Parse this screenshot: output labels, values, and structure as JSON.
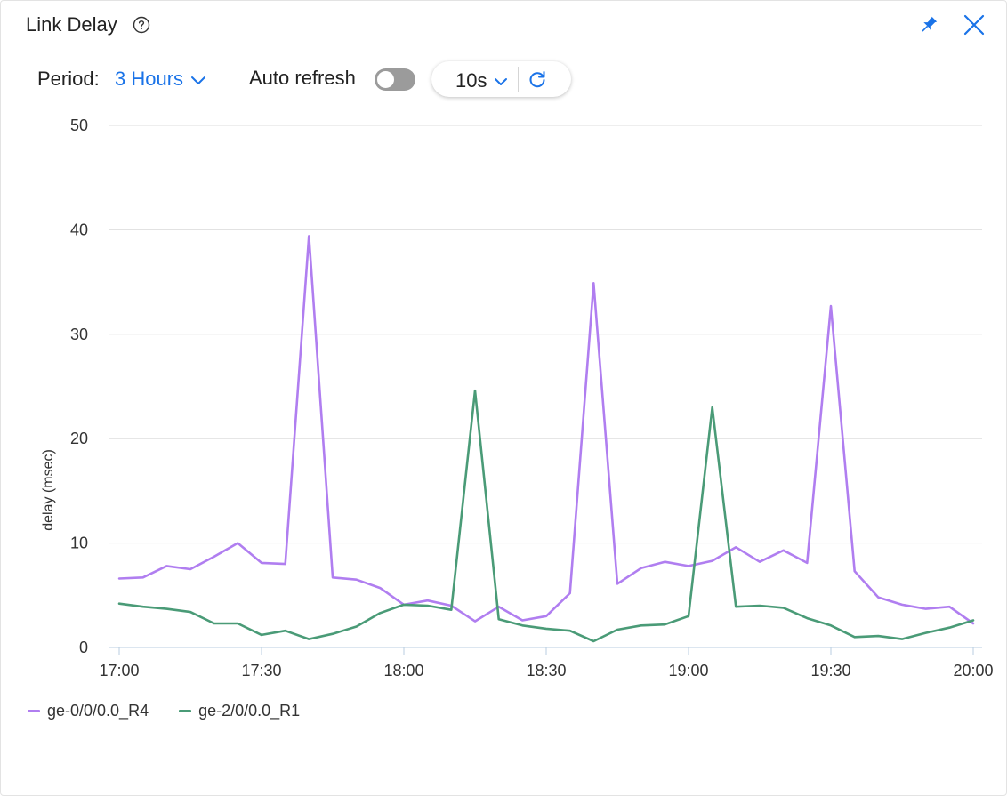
{
  "header": {
    "title": "Link Delay",
    "help_icon": "help-circle-icon",
    "pin_icon": "pin-icon",
    "close_icon": "close-icon"
  },
  "controls": {
    "period_label": "Period:",
    "period_value": "3 Hours",
    "auto_refresh_label": "Auto refresh",
    "auto_refresh_on": false,
    "interval_value": "10s",
    "accent_color": "#1a73e8"
  },
  "chart_data": {
    "type": "line",
    "title": "",
    "xlabel": "",
    "ylabel": "delay (msec)",
    "ylim": [
      0,
      50
    ],
    "yticks": [
      "0",
      "10",
      "20",
      "30",
      "40",
      "50"
    ],
    "xticks": [
      "17:00",
      "17:30",
      "18:00",
      "18:30",
      "19:00",
      "19:30",
      "20:00"
    ],
    "xlim": [
      "17:00",
      "20:00"
    ],
    "grid": true,
    "legend": "bottom-left",
    "x": [
      "17:00",
      "17:05",
      "17:10",
      "17:15",
      "17:20",
      "17:25",
      "17:30",
      "17:35",
      "17:40",
      "17:45",
      "17:50",
      "17:55",
      "18:00",
      "18:05",
      "18:10",
      "18:15",
      "18:20",
      "18:25",
      "18:30",
      "18:35",
      "18:40",
      "18:45",
      "18:50",
      "18:55",
      "19:00",
      "19:05",
      "19:10",
      "19:15",
      "19:20",
      "19:25",
      "19:30",
      "19:35",
      "19:40",
      "19:45",
      "19:50",
      "19:55",
      "20:00"
    ],
    "series": [
      {
        "name": "ge-0/0/0.0_R4",
        "color": "#b07ef0",
        "values": [
          6.6,
          6.7,
          7.8,
          7.5,
          8.7,
          10.0,
          8.1,
          8.0,
          39.4,
          6.7,
          6.5,
          5.7,
          4.1,
          4.5,
          4.0,
          2.5,
          3.9,
          2.6,
          3.0,
          5.2,
          34.9,
          6.1,
          7.6,
          8.2,
          7.8,
          8.3,
          9.6,
          8.2,
          9.3,
          8.1,
          32.7,
          7.3,
          4.8,
          4.1,
          3.7,
          3.9,
          2.3
        ]
      },
      {
        "name": "ge-2/0/0.0_R1",
        "color": "#4a9b77",
        "values": [
          4.2,
          3.9,
          3.7,
          3.4,
          2.3,
          2.3,
          1.2,
          1.6,
          0.8,
          1.3,
          2.0,
          3.3,
          4.1,
          4.0,
          3.6,
          24.6,
          2.7,
          2.1,
          1.8,
          1.6,
          0.6,
          1.7,
          2.1,
          2.2,
          3.0,
          23.0,
          3.9,
          4.0,
          3.8,
          2.8,
          2.1,
          1.0,
          1.1,
          0.8,
          1.4,
          1.9,
          2.6
        ]
      }
    ]
  }
}
